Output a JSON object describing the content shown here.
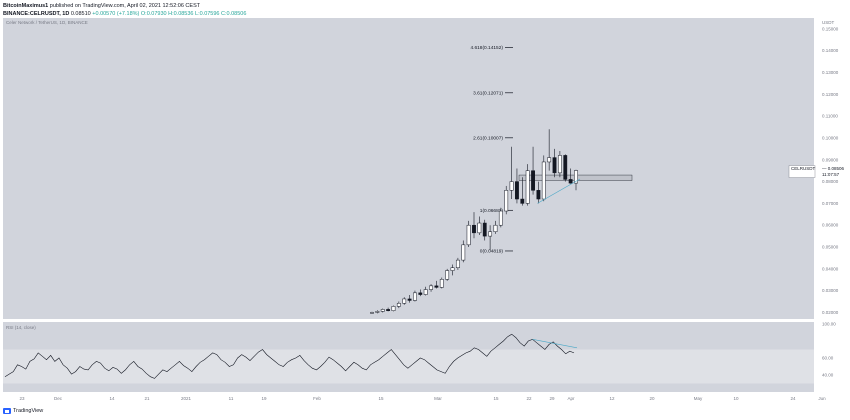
{
  "header": {
    "publisher": "BitcoinMaximus1",
    "published_text": "published on TradingView.com, April 02, 2021 12:52:06 CEST",
    "symbol_line": "BINANCE:CELRUSDT, 1D",
    "change": "0.08510",
    "change_pct": "+0.00570 (+7.18%)",
    "ohlc": "O:0.07930 H:0.08536 L:0.07596 C:0.08506"
  },
  "pane_labels": {
    "main": "Celer Network / TetherUS, 1D, BINANCE",
    "rsi": "RSI (14, close)"
  },
  "footer": {
    "brand": "TradingView"
  },
  "colors": {
    "pane_bg": "#d1d4dc",
    "up_candle": "#ffffff",
    "down_candle": "#131722",
    "trendline": "#4aa8c7",
    "rsi_band": "#dfe1e6",
    "rsi_line": "#131722",
    "price_label_bg": "#ffffff"
  },
  "chart_data": {
    "type": "candlestick",
    "symbol": "CELRUSDT",
    "price_axis_unit": "USDT",
    "y_ticks": [
      "0.15000",
      "0.14000",
      "0.13000",
      "0.12000",
      "0.11000",
      "0.10000",
      "0.09000",
      "0.08000",
      "0.07000",
      "0.06000",
      "0.05000",
      "0.04000",
      "0.03000",
      "0.02000"
    ],
    "ylim": [
      0.017,
      0.155
    ],
    "x_ticks": [
      "23",
      "Dec",
      "14",
      "21",
      "2021",
      "11",
      "19",
      "Feb",
      "15",
      "Mar",
      "15",
      "22",
      "29",
      "Apr",
      "12",
      "20",
      "May",
      "10",
      "24",
      "Jun"
    ],
    "current_price": {
      "label": "CELRUSDT",
      "value": "0.08506",
      "countdown": "11:07:57"
    },
    "fib_levels": [
      {
        "label": "4.618(0.14152)",
        "value": 0.14152
      },
      {
        "label": "3.61(0.12071)",
        "value": 0.12071
      },
      {
        "label": "2.61(0.10007)",
        "value": 0.10007
      },
      {
        "label": "1(0.06683)",
        "value": 0.06683
      },
      {
        "label": "0(0.04819)",
        "value": 0.04819
      }
    ],
    "support_zone": [
      0.0805,
      0.083
    ],
    "candles": [
      {
        "o": 0.0198,
        "h": 0.0203,
        "l": 0.0195,
        "c": 0.02
      },
      {
        "o": 0.02,
        "h": 0.021,
        "l": 0.0196,
        "c": 0.0205
      },
      {
        "o": 0.0205,
        "h": 0.0218,
        "l": 0.02,
        "c": 0.0214
      },
      {
        "o": 0.0214,
        "h": 0.0222,
        "l": 0.0205,
        "c": 0.0208
      },
      {
        "o": 0.0208,
        "h": 0.0232,
        "l": 0.0205,
        "c": 0.0228
      },
      {
        "o": 0.0228,
        "h": 0.025,
        "l": 0.022,
        "c": 0.0242
      },
      {
        "o": 0.0242,
        "h": 0.027,
        "l": 0.0235,
        "c": 0.0262
      },
      {
        "o": 0.0262,
        "h": 0.028,
        "l": 0.0245,
        "c": 0.0255
      },
      {
        "o": 0.0255,
        "h": 0.03,
        "l": 0.025,
        "c": 0.029
      },
      {
        "o": 0.029,
        "h": 0.0305,
        "l": 0.0275,
        "c": 0.0282
      },
      {
        "o": 0.0282,
        "h": 0.0318,
        "l": 0.0278,
        "c": 0.0305
      },
      {
        "o": 0.0305,
        "h": 0.033,
        "l": 0.0295,
        "c": 0.0322
      },
      {
        "o": 0.0322,
        "h": 0.0345,
        "l": 0.031,
        "c": 0.0315
      },
      {
        "o": 0.0315,
        "h": 0.036,
        "l": 0.031,
        "c": 0.0352
      },
      {
        "o": 0.0352,
        "h": 0.04,
        "l": 0.0345,
        "c": 0.0392
      },
      {
        "o": 0.0392,
        "h": 0.042,
        "l": 0.037,
        "c": 0.0405
      },
      {
        "o": 0.0405,
        "h": 0.045,
        "l": 0.0395,
        "c": 0.044
      },
      {
        "o": 0.044,
        "h": 0.053,
        "l": 0.043,
        "c": 0.051
      },
      {
        "o": 0.051,
        "h": 0.062,
        "l": 0.05,
        "c": 0.06
      },
      {
        "o": 0.06,
        "h": 0.066,
        "l": 0.054,
        "c": 0.0565
      },
      {
        "o": 0.0565,
        "h": 0.064,
        "l": 0.0555,
        "c": 0.061
      },
      {
        "o": 0.061,
        "h": 0.0625,
        "l": 0.053,
        "c": 0.055
      },
      {
        "o": 0.055,
        "h": 0.06,
        "l": 0.0485,
        "c": 0.057
      },
      {
        "o": 0.057,
        "h": 0.062,
        "l": 0.056,
        "c": 0.06
      },
      {
        "o": 0.06,
        "h": 0.068,
        "l": 0.059,
        "c": 0.0665
      },
      {
        "o": 0.0665,
        "h": 0.078,
        "l": 0.065,
        "c": 0.076
      },
      {
        "o": 0.076,
        "h": 0.096,
        "l": 0.072,
        "c": 0.08
      },
      {
        "o": 0.08,
        "h": 0.086,
        "l": 0.07,
        "c": 0.072
      },
      {
        "o": 0.072,
        "h": 0.082,
        "l": 0.069,
        "c": 0.07
      },
      {
        "o": 0.07,
        "h": 0.088,
        "l": 0.069,
        "c": 0.085
      },
      {
        "o": 0.085,
        "h": 0.096,
        "l": 0.074,
        "c": 0.076
      },
      {
        "o": 0.076,
        "h": 0.08,
        "l": 0.07,
        "c": 0.072
      },
      {
        "o": 0.072,
        "h": 0.092,
        "l": 0.071,
        "c": 0.089
      },
      {
        "o": 0.089,
        "h": 0.104,
        "l": 0.085,
        "c": 0.091
      },
      {
        "o": 0.091,
        "h": 0.095,
        "l": 0.082,
        "c": 0.084
      },
      {
        "o": 0.084,
        "h": 0.094,
        "l": 0.082,
        "c": 0.092
      },
      {
        "o": 0.092,
        "h": 0.0925,
        "l": 0.08,
        "c": 0.081
      },
      {
        "o": 0.081,
        "h": 0.086,
        "l": 0.079,
        "c": 0.0793
      },
      {
        "o": 0.0793,
        "h": 0.0854,
        "l": 0.076,
        "c": 0.0851
      }
    ],
    "rsi": {
      "label": "RSI (14, close)",
      "y_ticks": [
        "100.00",
        "60.00",
        "40.00"
      ],
      "ylim": [
        20,
        100
      ],
      "band": [
        30,
        70
      ],
      "values": [
        38,
        41,
        44,
        52,
        50,
        47,
        56,
        59,
        66,
        62,
        58,
        63,
        56,
        60,
        52,
        48,
        41,
        44,
        50,
        47,
        46,
        52,
        56,
        54,
        48,
        45,
        49,
        47,
        42,
        46,
        52,
        56,
        50,
        47,
        42,
        38,
        36,
        41,
        46,
        44,
        48,
        52,
        56,
        51,
        48,
        44,
        50,
        55,
        58,
        62,
        66,
        64,
        58,
        55,
        50,
        52,
        60,
        64,
        61,
        57,
        62,
        67,
        70,
        64,
        60,
        56,
        52,
        50,
        55,
        58,
        60,
        63,
        57,
        52,
        48,
        46,
        50,
        55,
        61,
        58,
        54,
        50,
        45,
        50,
        55,
        52,
        48,
        46,
        52,
        55,
        58,
        62,
        66,
        70,
        64,
        58,
        52,
        48,
        52,
        56,
        60,
        58,
        54,
        50,
        46,
        44,
        42,
        50,
        56,
        60,
        63,
        66,
        68,
        72,
        70,
        66,
        62,
        68,
        72,
        76,
        80,
        85,
        88,
        84,
        78,
        74,
        80,
        82,
        78,
        74,
        70,
        76,
        79,
        74,
        70,
        65,
        68,
        66
      ]
    }
  }
}
